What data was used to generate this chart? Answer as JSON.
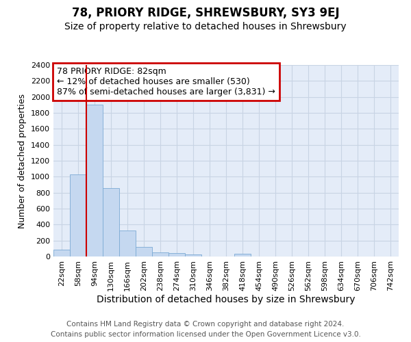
{
  "title": "78, PRIORY RIDGE, SHREWSBURY, SY3 9EJ",
  "subtitle": "Size of property relative to detached houses in Shrewsbury",
  "xlabel": "Distribution of detached houses by size in Shrewsbury",
  "ylabel": "Number of detached properties",
  "categories": [
    "22sqm",
    "58sqm",
    "94sqm",
    "130sqm",
    "166sqm",
    "202sqm",
    "238sqm",
    "274sqm",
    "310sqm",
    "346sqm",
    "382sqm",
    "418sqm",
    "454sqm",
    "490sqm",
    "526sqm",
    "562sqm",
    "598sqm",
    "634sqm",
    "670sqm",
    "706sqm",
    "742sqm"
  ],
  "values": [
    90,
    1030,
    1900,
    860,
    325,
    120,
    50,
    40,
    30,
    0,
    0,
    35,
    0,
    0,
    0,
    0,
    0,
    0,
    0,
    0,
    0
  ],
  "bar_color": "#c5d8f0",
  "bar_edge_color": "#7baad4",
  "grid_color": "#c8d4e4",
  "background_color": "#e4ecf8",
  "annotation_text": "78 PRIORY RIDGE: 82sqm\n← 12% of detached houses are smaller (530)\n87% of semi-detached houses are larger (3,831) →",
  "annotation_facecolor": "#ffffff",
  "annotation_edgecolor": "#cc0000",
  "vline_color": "#cc0000",
  "vline_x": 1.5,
  "ylim": [
    0,
    2400
  ],
  "yticks": [
    0,
    200,
    400,
    600,
    800,
    1000,
    1200,
    1400,
    1600,
    1800,
    2000,
    2200,
    2400
  ],
  "footer_line1": "Contains HM Land Registry data © Crown copyright and database right 2024.",
  "footer_line2": "Contains public sector information licensed under the Open Government Licence v3.0.",
  "title_fontsize": 12,
  "subtitle_fontsize": 10,
  "xlabel_fontsize": 10,
  "ylabel_fontsize": 9,
  "tick_fontsize": 8,
  "annotation_fontsize": 9,
  "footer_fontsize": 7.5
}
